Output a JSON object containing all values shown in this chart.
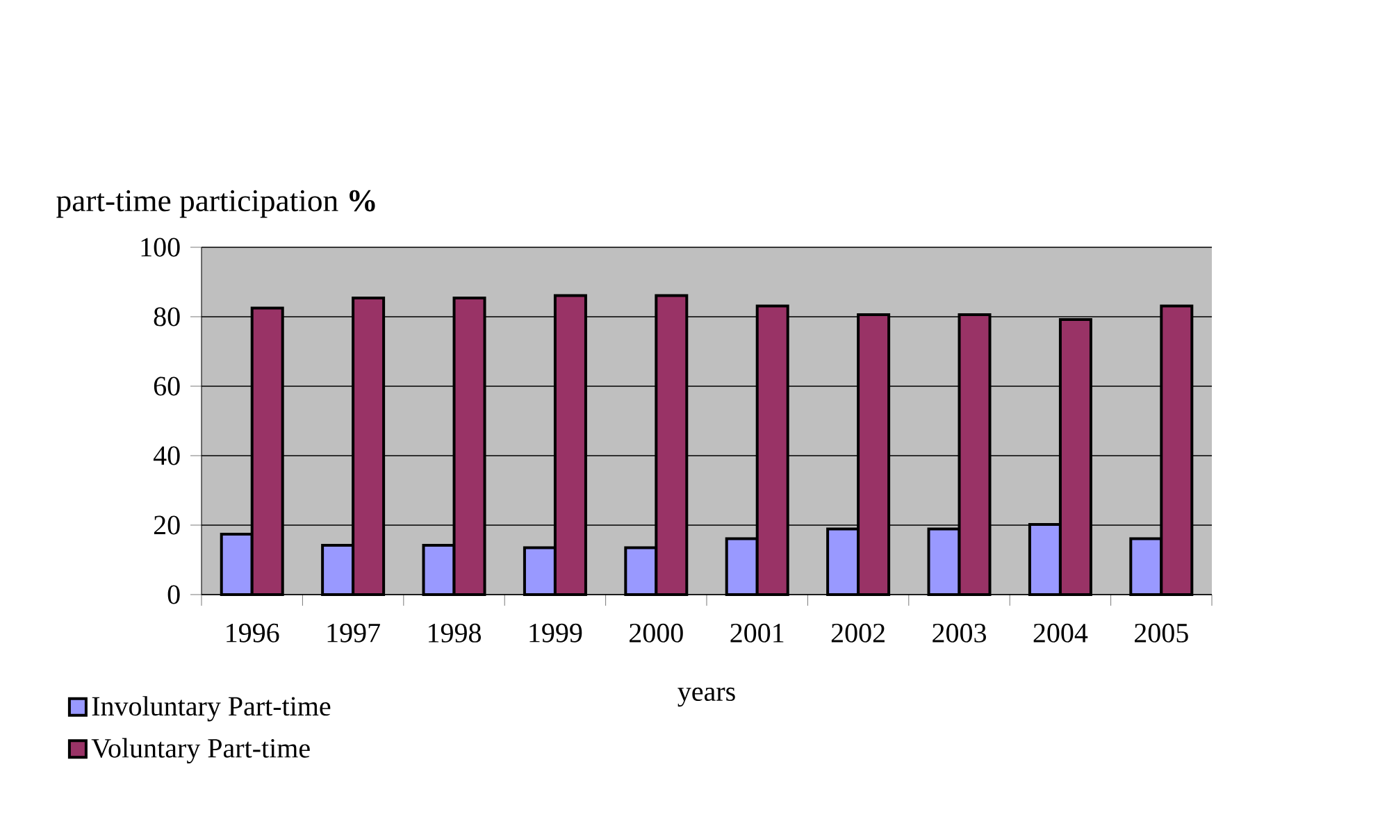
{
  "chart_data": {
    "type": "bar",
    "xlabel": "years",
    "ylabel": "part-time participation **%**",
    "categories": [
      "1996",
      "1997",
      "1998",
      "1999",
      "2000",
      "2001",
      "2002",
      "2003",
      "2004",
      "2005"
    ],
    "series": [
      {
        "name": "Involuntary Part-time",
        "color": "#9999ff",
        "values": [
          17.4,
          14.2,
          14.2,
          13.5,
          13.5,
          16.1,
          18.9,
          18.9,
          20.2,
          16.1
        ]
      },
      {
        "name": "Voluntary Part-time",
        "color": "#993366",
        "values": [
          82.5,
          85.4,
          85.4,
          86.1,
          86.1,
          83.1,
          80.6,
          80.6,
          79.2,
          83.1
        ]
      }
    ],
    "ylim": [
      0,
      100
    ],
    "yticks": [
      0,
      20,
      40,
      60,
      80,
      100
    ],
    "grid": "y",
    "legend": "bottom left"
  }
}
